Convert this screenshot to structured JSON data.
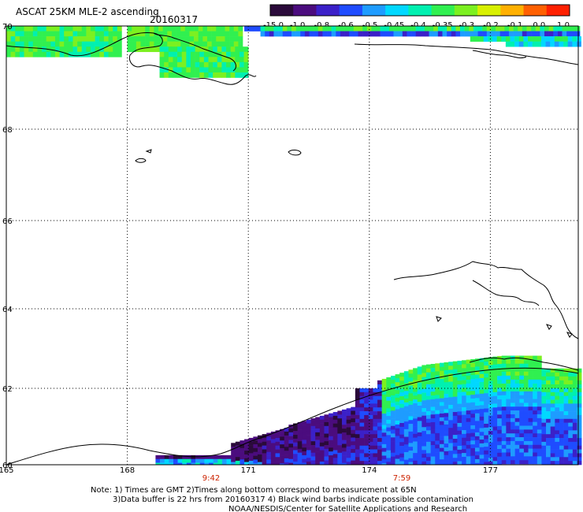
{
  "title": "ASCAT 25KM MLE-2 ascending",
  "date": "20160317",
  "colorbar": {
    "labels": [
      "-15.0",
      "-1.0",
      "-0.8",
      "-0.6",
      "-0.5",
      "-0.45",
      "-0.4",
      "-0.35",
      "-0.3",
      "-0.2",
      "-0.1",
      "0.0",
      "1.0"
    ],
    "colors": [
      "#2a0a3a",
      "#4b0c7e",
      "#3b20c8",
      "#1f4cff",
      "#1e9cff",
      "#00d8ff",
      "#00f0b0",
      "#30f050",
      "#7cf020",
      "#d8f000",
      "#ffb000",
      "#ff6000",
      "#ff2000"
    ]
  },
  "axes": {
    "lon_labels": [
      "165",
      "168",
      "171",
      "174",
      "177"
    ],
    "lat_labels": [
      "70",
      "68",
      "66",
      "64",
      "62",
      "60"
    ]
  },
  "times": [
    "9:42",
    "7:59"
  ],
  "time_color": "#cc2200",
  "notes": [
    "Note: 1) Times are GMT 2)Times along bottom correspond to measurement at 65N",
    "3)Data buffer is 22 hrs from 20160317 4) Black wind barbs indicate possible contamination",
    "NOAA/NESDIS/Center for Satellite Applications and Research"
  ]
}
